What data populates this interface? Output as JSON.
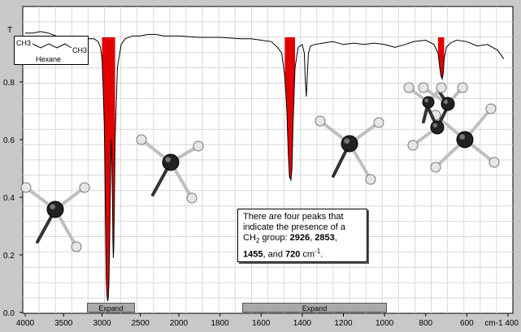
{
  "chart_data": {
    "type": "line",
    "title": "",
    "xlabel": "cm-1",
    "ylabel": "T",
    "xlim": [
      4000,
      400
    ],
    "ylim": [
      0,
      1
    ],
    "x_ticks": [
      4000,
      3500,
      3000,
      2500,
      2000,
      1800,
      1600,
      1400,
      1200,
      1000,
      800,
      600,
      400
    ],
    "x_tick_labels": [
      "4000",
      "3500",
      "3000",
      "2500",
      "2000",
      "1800",
      "1600",
      "1400",
      "1200",
      "1000",
      "800",
      "600",
      "cm-1 400"
    ],
    "y_ticks": [
      0.0,
      0.2,
      0.4,
      0.6,
      0.8
    ],
    "y_tick_labels": [
      "0.0",
      "0.2",
      "0.4",
      "0.6",
      "0.8"
    ],
    "y_top_label": "T",
    "grid": true,
    "series": [
      {
        "x": [
          4000,
          3900,
          3800,
          3700,
          3600,
          3500,
          3450,
          3400,
          3300,
          3200,
          3100,
          3050,
          3020,
          3000,
          2985,
          2970,
          2962,
          2955,
          2945,
          2935,
          2926,
          2918,
          2910,
          2900,
          2890,
          2880,
          2872,
          2865,
          2858,
          2853,
          2848,
          2840,
          2830,
          2800,
          2750,
          2700,
          2600,
          2500,
          2400,
          2300,
          2200,
          2100,
          2000,
          1900,
          1800,
          1700,
          1650,
          1600,
          1550,
          1520,
          1500,
          1485,
          1475,
          1468,
          1462,
          1455,
          1450,
          1445,
          1435,
          1420,
          1400,
          1390,
          1385,
          1380,
          1376,
          1370,
          1360,
          1340,
          1300,
          1250,
          1200,
          1150,
          1100,
          1050,
          1000,
          950,
          900,
          860,
          800,
          760,
          740,
          730,
          725,
          720,
          715,
          710,
          700,
          680,
          650,
          600,
          550,
          500,
          450,
          420
        ],
        "y": [
          0.97,
          0.97,
          0.975,
          0.97,
          0.96,
          0.93,
          0.93,
          0.95,
          0.955,
          0.95,
          0.95,
          0.94,
          0.92,
          0.88,
          0.78,
          0.65,
          0.5,
          0.3,
          0.12,
          0.06,
          0.04,
          0.05,
          0.1,
          0.25,
          0.45,
          0.6,
          0.55,
          0.4,
          0.25,
          0.19,
          0.22,
          0.35,
          0.6,
          0.85,
          0.93,
          0.95,
          0.96,
          0.96,
          0.965,
          0.965,
          0.96,
          0.96,
          0.96,
          0.955,
          0.955,
          0.95,
          0.95,
          0.945,
          0.94,
          0.92,
          0.9,
          0.82,
          0.7,
          0.55,
          0.47,
          0.46,
          0.5,
          0.65,
          0.85,
          0.92,
          0.93,
          0.9,
          0.8,
          0.75,
          0.82,
          0.9,
          0.925,
          0.93,
          0.935,
          0.94,
          0.93,
          0.935,
          0.93,
          0.935,
          0.93,
          0.92,
          0.93,
          0.94,
          0.945,
          0.93,
          0.9,
          0.84,
          0.82,
          0.81,
          0.83,
          0.88,
          0.92,
          0.935,
          0.945,
          0.94,
          0.925,
          0.93,
          0.91,
          0.88
        ]
      }
    ],
    "highlighted_peaks": [
      2926,
      2853,
      1455,
      720
    ],
    "peak_color": "#e00000"
  },
  "legend": {
    "ch3_left": "CH3",
    "ch3_right": "CH3",
    "compound_name": "Hexane"
  },
  "note": {
    "line1": "There  are four peaks that",
    "line2": "indicate the presence of a",
    "line3_prefix": "CH",
    "line3_sub": "2",
    "line3_suffix": " group: ",
    "peak1": "2926",
    "sep1": ",  ",
    "peak2": "2853",
    "sep2": ",",
    "peak3": "1455",
    "sep3": ", and ",
    "peak4": "720",
    "unit_prefix": " cm",
    "unit_sup": "-1",
    "unit_end": "."
  },
  "buttons": {
    "expand_left": "Expand",
    "expand_right": "Expand"
  }
}
